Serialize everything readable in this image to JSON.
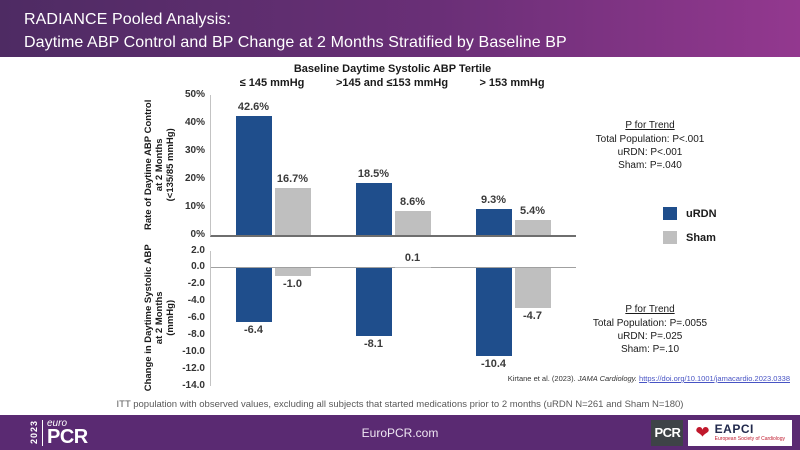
{
  "header": {
    "line1": "RADIANCE Pooled Analysis:",
    "line2": "Daytime ABP Control and BP Change at 2 Months Stratified by Baseline BP"
  },
  "chart_data": [
    {
      "type": "bar",
      "title": "Baseline Daytime Systolic ABP Tertile",
      "categories": [
        "≤ 145 mmHg",
        ">145 and ≤153 mmHg",
        "> 153 mmHg"
      ],
      "series": [
        {
          "name": "uRDN",
          "color": "#1F4E8C",
          "values": [
            42.6,
            18.5,
            9.3
          ],
          "labels": [
            "42.6%",
            "18.5%",
            "9.3%"
          ]
        },
        {
          "name": "Sham",
          "color": "#BFBFBF",
          "values": [
            16.7,
            8.6,
            5.4
          ],
          "labels": [
            "16.7%",
            "8.6%",
            "5.4%"
          ]
        }
      ],
      "ylabel": "Rate of Daytime ABP Control at 2 Months (<135/85 mmHg)",
      "ylabel_lines": [
        "Rate of Daytime ABP Control",
        "at 2 Months",
        "(<135/85 mmHg)"
      ],
      "ylim": [
        0,
        50
      ],
      "yticks": [
        {
          "value": 0,
          "label": "0%"
        },
        {
          "value": 10,
          "label": "10%"
        },
        {
          "value": 20,
          "label": "20%"
        },
        {
          "value": 30,
          "label": "30%"
        },
        {
          "value": 40,
          "label": "40%"
        },
        {
          "value": 50,
          "label": "50%"
        }
      ],
      "grid": false,
      "p_for_trend": {
        "heading": "P for Trend",
        "lines": [
          "Total Population: P<.001",
          "uRDN: P<.001",
          "Sham: P=.040"
        ]
      }
    },
    {
      "type": "bar",
      "title": "",
      "categories": [
        "≤ 145 mmHg",
        ">145 and ≤153 mmHg",
        "> 153 mmHg"
      ],
      "series": [
        {
          "name": "uRDN",
          "color": "#1F4E8C",
          "values": [
            -6.4,
            -8.1,
            -10.4
          ],
          "labels": [
            "-6.4",
            "-8.1",
            "-10.4"
          ]
        },
        {
          "name": "Sham",
          "color": "#BFBFBF",
          "values": [
            -1.0,
            0.1,
            -4.7
          ],
          "labels": [
            "-1.0",
            "0.1",
            "-4.7"
          ]
        }
      ],
      "ylabel": "Change in Daytime Systolic ABP at 2 Months (mmHg)",
      "ylabel_lines": [
        "Change in Daytime Systolic ABP",
        "at 2 Months",
        "(mmHg)"
      ],
      "ylim": [
        -14,
        2
      ],
      "yticks": [
        {
          "value": 2,
          "label": "2.0"
        },
        {
          "value": 0,
          "label": "0.0"
        },
        {
          "value": -2,
          "label": "-2.0"
        },
        {
          "value": -4,
          "label": "-4.0"
        },
        {
          "value": -6,
          "label": "-6.0"
        },
        {
          "value": -8,
          "label": "-8.0"
        },
        {
          "value": -10,
          "label": "-10.0"
        },
        {
          "value": -12,
          "label": "-12.0"
        },
        {
          "value": -14,
          "label": "-14.0"
        }
      ],
      "grid": false,
      "p_for_trend": {
        "heading": "P for Trend",
        "lines": [
          "Total Population: P=.0055",
          "uRDN: P=.025",
          "Sham: P=.10"
        ]
      }
    }
  ],
  "legend": [
    {
      "label": "uRDN",
      "color": "#1F4E8C"
    },
    {
      "label": "Sham",
      "color": "#BFBFBF"
    }
  ],
  "citation": {
    "prefix": "Kirtane et al. (2023). ",
    "journal": "JAMA Cardiology. ",
    "link": "https://doi.org/10.1001/jamacardio.2023.0338"
  },
  "footnote": "ITT population with observed values, excluding all subjects that started medications prior to 2 months (uRDN N=261 and Sham N=180)",
  "footer": {
    "site": "EuroPCR.com",
    "logo": {
      "year": "2023",
      "euro": "euro",
      "pcr": "PCR"
    },
    "pcr_badge": "PCR",
    "eapci": {
      "name": "EAPCI",
      "sub": "European Society of Cardiology"
    }
  },
  "colors": {
    "urdn_blue": "#1F4E8C",
    "sham_gray": "#BFBFBF",
    "header_gradient_start": "#4E2B63",
    "header_gradient_end": "#93388F",
    "footer_purple": "#5A2A72"
  }
}
